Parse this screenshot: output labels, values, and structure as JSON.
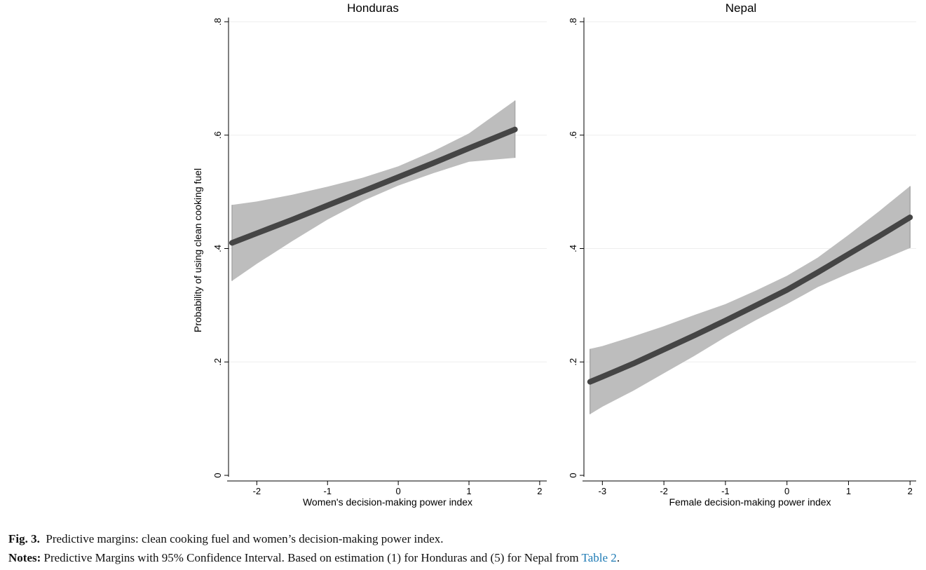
{
  "chart_data": [
    {
      "type": "line",
      "title": "Honduras",
      "xlabel": "Women's decision-making power index",
      "ylabel": "Probability of using clean cooking fuel",
      "xlim": [
        -2.4,
        2.1
      ],
      "ylim": [
        0,
        0.8
      ],
      "xticks": [
        -2,
        -1,
        0,
        1,
        2
      ],
      "xtick_labels": [
        "-2",
        "-1",
        "0",
        "1",
        "2"
      ],
      "yticks": [
        0,
        0.2,
        0.4,
        0.6,
        0.8
      ],
      "ytick_labels": [
        "0",
        ".2",
        ".4",
        ".6",
        ".8"
      ],
      "grid": true,
      "series": [
        {
          "x": [
            -2.35,
            -2,
            -1.5,
            -1,
            -0.5,
            0,
            0.5,
            1,
            1.65
          ],
          "y": [
            0.41,
            0.427,
            0.451,
            0.476,
            0.501,
            0.526,
            0.551,
            0.577,
            0.61
          ],
          "ci_low": [
            0.343,
            0.373,
            0.413,
            0.451,
            0.484,
            0.511,
            0.533,
            0.553,
            0.56
          ],
          "ci_high": [
            0.477,
            0.483,
            0.495,
            0.509,
            0.525,
            0.545,
            0.572,
            0.603,
            0.661
          ]
        }
      ]
    },
    {
      "type": "line",
      "title": "Nepal",
      "xlabel": "Female decision-making power index",
      "ylabel": "",
      "xlim": [
        -3.3,
        2.1
      ],
      "ylim": [
        0,
        0.8
      ],
      "xticks": [
        -3,
        -2,
        -1,
        0,
        1,
        2
      ],
      "xtick_labels": [
        "-3",
        "-2",
        "-1",
        "0",
        "1",
        "2"
      ],
      "yticks": [
        0,
        0.2,
        0.4,
        0.6,
        0.8
      ],
      "ytick_labels": [
        "0",
        ".2",
        ".4",
        ".6",
        ".8"
      ],
      "grid": true,
      "series": [
        {
          "x": [
            -3.2,
            -3,
            -2.5,
            -2,
            -1.5,
            -1,
            -0.5,
            0,
            0.5,
            1,
            1.5,
            2
          ],
          "y": [
            0.165,
            0.174,
            0.197,
            0.222,
            0.247,
            0.273,
            0.3,
            0.327,
            0.358,
            0.39,
            0.422,
            0.455
          ],
          "ci_low": [
            0.108,
            0.121,
            0.149,
            0.18,
            0.211,
            0.244,
            0.274,
            0.302,
            0.332,
            0.356,
            0.378,
            0.401
          ],
          "ci_high": [
            0.223,
            0.228,
            0.245,
            0.263,
            0.283,
            0.302,
            0.326,
            0.352,
            0.384,
            0.424,
            0.466,
            0.51
          ]
        }
      ]
    }
  ],
  "colors": {
    "ci_band": "#bdbdbd",
    "line": "#454545",
    "grid": "#eeeeee",
    "axis": "#000000",
    "link": "#1e7bb5"
  },
  "caption": {
    "fig_label": "Fig. 3.",
    "fig_text": "Predictive margins: clean cooking fuel and women’s decision-making power index.",
    "notes_label": "Notes:",
    "notes_text": "Predictive Margins with 95% Confidence Interval. Based on estimation (1) for Honduras and (5) for Nepal from",
    "notes_link": "Table 2",
    "notes_end": "."
  }
}
